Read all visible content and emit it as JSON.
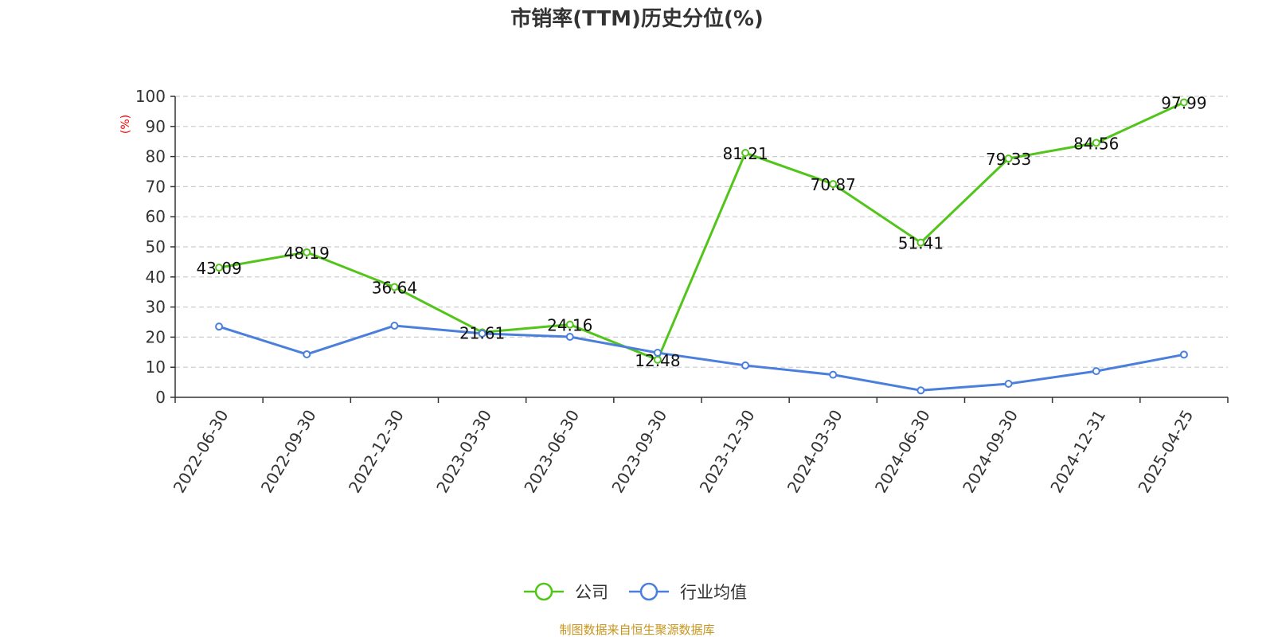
{
  "chart_data": {
    "type": "line",
    "title": "市销率(TTM)历史分位(%)",
    "ylabel": "(%)",
    "xlabel": "",
    "ylim": [
      0,
      100
    ],
    "yticks": [
      0,
      10,
      20,
      30,
      40,
      50,
      60,
      70,
      80,
      90,
      100
    ],
    "categories": [
      "2022-06-30",
      "2022-09-30",
      "2022-12-30",
      "2023-03-30",
      "2023-06-30",
      "2023-09-30",
      "2023-12-30",
      "2024-03-30",
      "2024-06-30",
      "2024-09-30",
      "2024-12-31",
      "2025-04-25"
    ],
    "series": [
      {
        "name": "公司",
        "color": "#52c41a",
        "values": [
          43.09,
          48.19,
          36.64,
          21.61,
          24.16,
          12.48,
          81.21,
          70.87,
          51.41,
          79.33,
          84.56,
          97.99
        ],
        "labels": [
          "43.09",
          "48.19",
          "36.64",
          "21.61",
          "24.16",
          "12.48",
          "81.21",
          "70.87",
          "51.41",
          "79.33",
          "84.56",
          "97.99"
        ]
      },
      {
        "name": "行业均值",
        "color": "#4a7fdc",
        "values": [
          23.5,
          14.3,
          23.8,
          21.2,
          20.1,
          14.8,
          10.6,
          7.5,
          2.3,
          4.5,
          8.7,
          14.2
        ]
      }
    ],
    "grid": "horizontal dashed",
    "legend_position": "bottom-center"
  },
  "footer": {
    "source": "制图数据来自恒生聚源数据库"
  }
}
